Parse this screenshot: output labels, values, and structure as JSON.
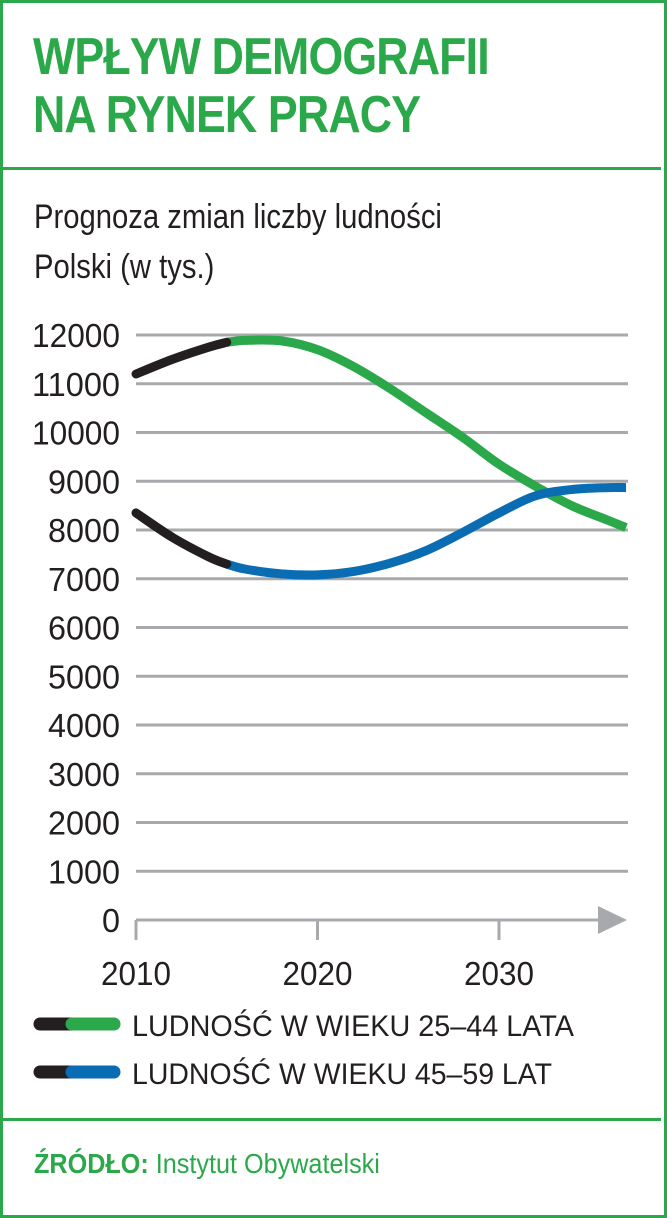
{
  "title_line1": "WPŁYW DEMOGRAFII",
  "title_line2": "NA RYNEK PRACY",
  "subtitle_line1": "Prognoza zmian liczby ludności",
  "subtitle_line2": "Polski (w tys.)",
  "source": {
    "label": "ŹRÓDŁO:",
    "text": "Instytut Obywatelski"
  },
  "colors": {
    "frame": "#2aa84a",
    "series_25_44": "#2aa84a",
    "series_45_59": "#0a6db3",
    "historical": "#231f20",
    "grid": "#a7a9ac"
  },
  "chart_data": {
    "type": "line",
    "ylim": [
      0,
      12000
    ],
    "yticks": [
      "12000",
      "11000",
      "10000",
      "9000",
      "8000",
      "7000",
      "6000",
      "5000",
      "4000",
      "3000",
      "2000",
      "1000",
      "0"
    ],
    "xticks": [
      "2010",
      "2020",
      "2030"
    ],
    "xlim": [
      2010,
      2037
    ],
    "grid": true,
    "legend_position": "bottom",
    "historical_until": 2015,
    "series": [
      {
        "name": "LUDNOŚĆ W WIEKU 25–44 LATA",
        "color": "#2aa84a",
        "x": [
          2010,
          2012,
          2014,
          2015,
          2016,
          2018,
          2020,
          2022,
          2024,
          2026,
          2028,
          2030,
          2032,
          2034,
          2036,
          2037
        ],
        "y": [
          11200,
          11500,
          11750,
          11850,
          11890,
          11880,
          11700,
          11350,
          10900,
          10400,
          9900,
          9350,
          8900,
          8500,
          8200,
          8050
        ]
      },
      {
        "name": "LUDNOŚĆ W WIEKU 45–59 LAT",
        "color": "#0a6db3",
        "x": [
          2010,
          2012,
          2014,
          2015,
          2016,
          2018,
          2020,
          2022,
          2024,
          2026,
          2028,
          2030,
          2032,
          2034,
          2036,
          2037
        ],
        "y": [
          8350,
          7850,
          7450,
          7300,
          7200,
          7100,
          7080,
          7150,
          7320,
          7580,
          7950,
          8350,
          8700,
          8830,
          8870,
          8870
        ]
      }
    ]
  }
}
